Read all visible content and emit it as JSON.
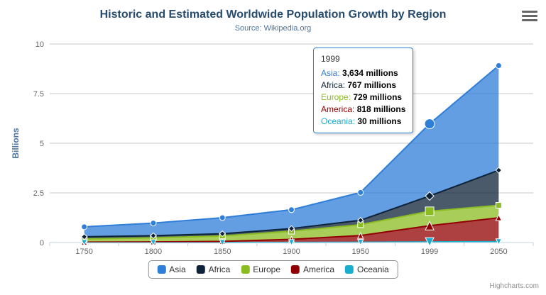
{
  "header": {
    "title": "Historic and Estimated Worldwide Population Growth by Region",
    "subtitle": "Source: Wikipedia.org"
  },
  "credits": "Highcharts.com",
  "icons": {
    "menu": "hamburger-icon"
  },
  "chart_data": {
    "type": "area",
    "stacked": true,
    "categories": [
      "1750",
      "1800",
      "1850",
      "1900",
      "1950",
      "1999",
      "2050"
    ],
    "series": [
      {
        "name": "Asia",
        "color": "#2f7ed8",
        "marker": "circle",
        "values": [
          502,
          635,
          809,
          947,
          1402,
          3634,
          5268
        ]
      },
      {
        "name": "Africa",
        "color": "#0d233a",
        "marker": "diamond",
        "values": [
          106,
          107,
          111,
          133,
          221,
          767,
          1766
        ]
      },
      {
        "name": "Europe",
        "color": "#8bbc21",
        "marker": "square",
        "values": [
          163,
          203,
          276,
          408,
          547,
          729,
          628
        ]
      },
      {
        "name": "America",
        "color": "#910000",
        "marker": "triangle",
        "values": [
          18,
          31,
          54,
          156,
          339,
          818,
          1201
        ]
      },
      {
        "name": "Oceania",
        "color": "#1aadce",
        "marker": "triangle-down",
        "values": [
          2,
          2,
          2,
          6,
          13,
          30,
          46
        ]
      }
    ],
    "stack_order_bottom_to_top": [
      "Oceania",
      "America",
      "Europe",
      "Africa",
      "Asia"
    ],
    "value_unit": "millions",
    "ylabel": "Billions",
    "yticks": [
      0,
      2.5,
      5,
      7.5,
      10
    ],
    "ylim": [
      0,
      10
    ],
    "grid": true,
    "legend_position": "bottom"
  },
  "tooltip": {
    "header": "1999",
    "border_color": "#2f7ed8",
    "rows": [
      {
        "name": "Asia",
        "value": "3,634 millions",
        "color": "#2f7ed8"
      },
      {
        "name": "Africa",
        "value": "767 millions",
        "color": "#0d233a"
      },
      {
        "name": "Europe",
        "value": "729 millions",
        "color": "#8bbc21"
      },
      {
        "name": "America",
        "value": "818 millions",
        "color": "#910000"
      },
      {
        "name": "Oceania",
        "value": "30 millions",
        "color": "#1aadce"
      }
    ]
  }
}
